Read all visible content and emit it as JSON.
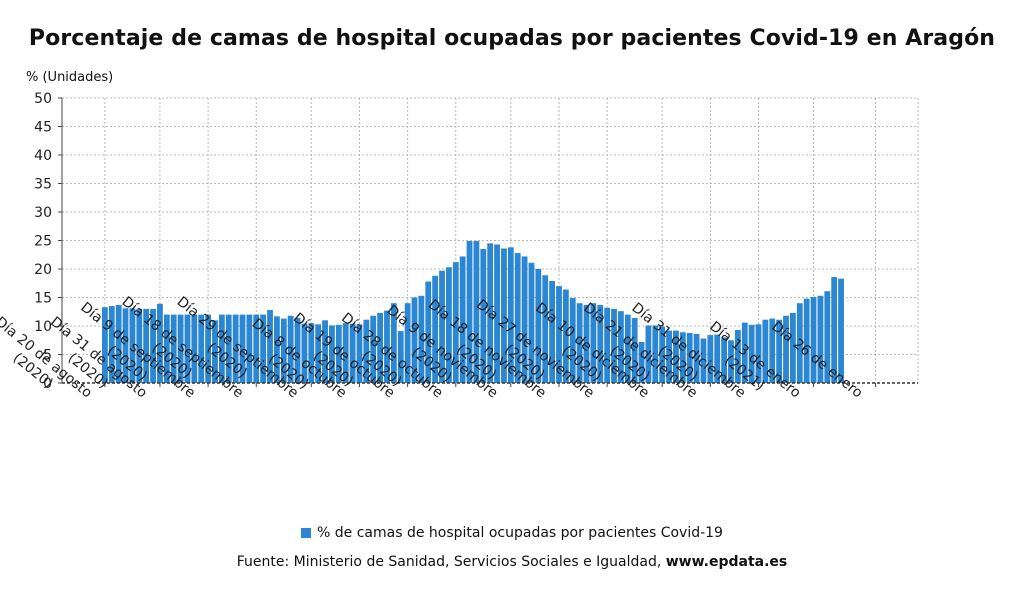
{
  "chart_data": {
    "type": "bar",
    "title": "Porcentaje de camas de hospital ocupadas por pacientes Covid-19 en Aragón",
    "ylabel": "% (Unidades)",
    "ylim": [
      0,
      50
    ],
    "yticks": [
      0,
      5,
      10,
      15,
      20,
      25,
      30,
      35,
      40,
      45,
      50
    ],
    "grid": true,
    "bar_color": "#2b86d4",
    "x_tick_labels": [
      {
        "index": 0,
        "lines": [
          "Día 20 de agosto",
          "(2020)"
        ]
      },
      {
        "index": 8,
        "lines": [
          "Día 31 de agosto",
          "(2020)"
        ]
      },
      {
        "index": 15,
        "lines": [
          "Día 9 de septiembre",
          "(2020)"
        ]
      },
      {
        "index": 22,
        "lines": [
          "Día 18 de septiembre",
          "(2020)"
        ]
      },
      {
        "index": 30,
        "lines": [
          "Día 29 de septiembre",
          "(2020)"
        ]
      },
      {
        "index": 37,
        "lines": [
          "Día 8 de octubre",
          "(2020)"
        ]
      },
      {
        "index": 44,
        "lines": [
          "Día 19 de octubre",
          "(2020)"
        ]
      },
      {
        "index": 51,
        "lines": [
          "Día 28 de octubre",
          "(2020)"
        ]
      },
      {
        "index": 59,
        "lines": [
          "Día 9 de noviembre",
          "(2020)"
        ]
      },
      {
        "index": 66,
        "lines": [
          "Día 18 de noviembre",
          "(2020)"
        ]
      },
      {
        "index": 73,
        "lines": [
          "Día 27 de noviembre",
          "(2020)"
        ]
      },
      {
        "index": 81,
        "lines": [
          "Día 10 de diciembre",
          "(2020)"
        ]
      },
      {
        "index": 88,
        "lines": [
          "Día 21 de diciembre",
          "(2020)"
        ]
      },
      {
        "index": 95,
        "lines": [
          "Día 31 de diciembre",
          "(2020)"
        ]
      },
      {
        "index": 103,
        "lines": [
          "Día 13 de enero",
          "(2021)"
        ]
      },
      {
        "index": 112,
        "lines": [
          "Día 26 de enero"
        ]
      }
    ],
    "series": [
      {
        "name": "% de camas de hospital ocupadas por pacientes Covid-19",
        "values": [
          13.3,
          13.5,
          13.7,
          13.1,
          13.1,
          13.0,
          13.0,
          13.0,
          13.9,
          12.0,
          12.0,
          12.0,
          12.0,
          12.0,
          12.0,
          12.0,
          11.0,
          12.0,
          12.0,
          12.0,
          12.0,
          12.0,
          12.0,
          12.0,
          12.8,
          11.7,
          11.3,
          11.8,
          11.4,
          10.4,
          10.5,
          10.3,
          11.0,
          10.1,
          10.2,
          10.5,
          10.4,
          10.3,
          11.1,
          11.8,
          12.3,
          12.7,
          14.0,
          9.1,
          14.0,
          15.0,
          15.3,
          17.8,
          18.8,
          19.7,
          20.3,
          21.2,
          22.2,
          24.9,
          24.9,
          23.5,
          24.5,
          24.3,
          23.6,
          23.8,
          22.8,
          22.2,
          21.1,
          20.0,
          18.9,
          17.9,
          17.0,
          16.4,
          14.9,
          14.0,
          13.7,
          14.0,
          13.7,
          13.2,
          13.0,
          12.6,
          12.0,
          11.4,
          7.2,
          10.1,
          10.1,
          9.9,
          9.2,
          9.2,
          8.9,
          8.8,
          8.6,
          7.8,
          8.4,
          8.5,
          8.0,
          7.5,
          9.3,
          10.6,
          10.2,
          10.3,
          11.1,
          11.3,
          11.1,
          11.8,
          12.3,
          14.0,
          14.8,
          15.1,
          15.3,
          16.1,
          18.6,
          18.3
        ]
      }
    ],
    "legend": {
      "position": "bottom-center",
      "label": "% de camas de hospital ocupadas por pacientes Covid-19"
    },
    "source": {
      "prefix": "Fuente: Ministerio de Sanidad, Servicios Sociales e Igualdad,",
      "site": "www.epdata.es"
    }
  }
}
